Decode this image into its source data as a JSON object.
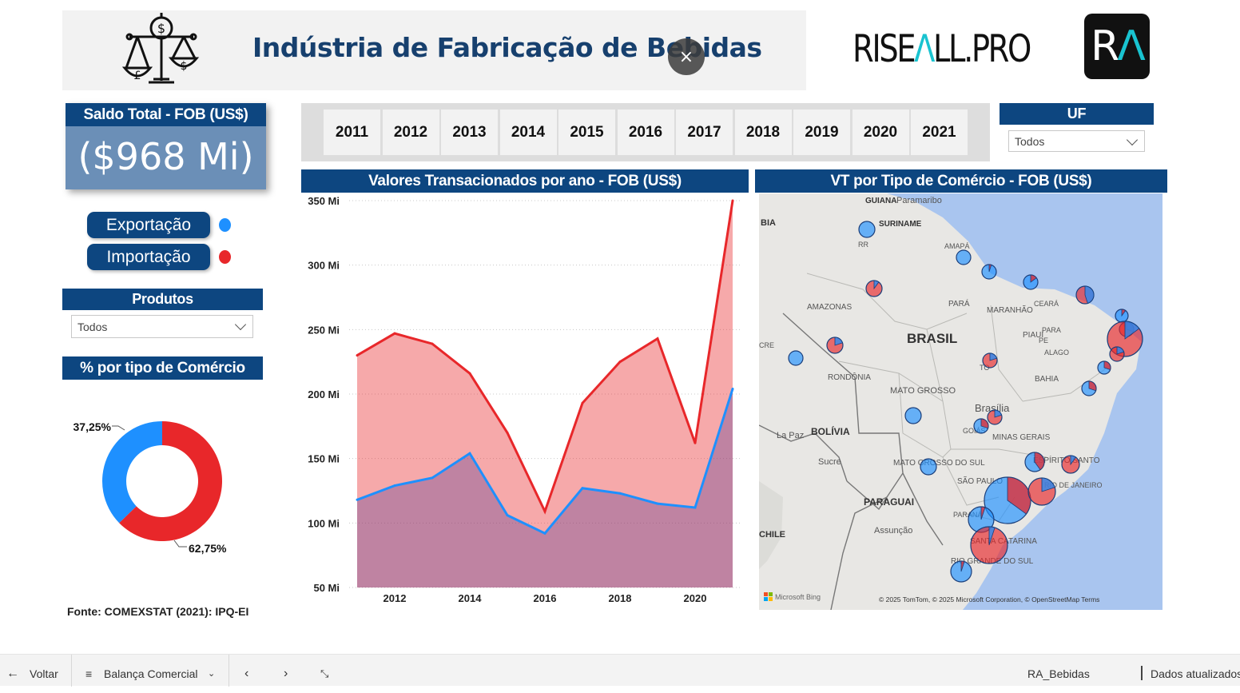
{
  "header": {
    "title": "Indústria de Fabricação de Bebidas"
  },
  "brand": {
    "name_a": "RISE",
    "name_b": "Λ",
    "name_c": "LL.PRO",
    "logo_a": "R",
    "logo_b": "Λ"
  },
  "close_button": {
    "icon": "close-icon",
    "label": "×"
  },
  "kpi": {
    "label": "Saldo Total - FOB (US$)",
    "value": "($968 Mi)"
  },
  "legend": [
    {
      "label": "Exportação",
      "color": "#1e90ff"
    },
    {
      "label": "Importação",
      "color": "#e8272a"
    }
  ],
  "produtos": {
    "label": "Produtos",
    "value": "Todos"
  },
  "uf": {
    "label": "UF",
    "value": "Todos"
  },
  "donut_title": "% por tipo de Comércio",
  "years": [
    "2011",
    "2012",
    "2013",
    "2014",
    "2015",
    "2016",
    "2017",
    "2018",
    "2019",
    "2020",
    "2021"
  ],
  "area_chart_title": "Valores Transacionados por ano - FOB (US$)",
  "map": {
    "title": "VT por Tipo de Comércio - FOB (US$)",
    "labels": [
      "GUIANA",
      "Paramaribo",
      "SURINAME",
      "BIA",
      "RR",
      "AMAPÁ",
      "AMAZONAS",
      "PARÁ",
      "MARANHÃO",
      "CEARÁ",
      "BRASIL",
      "PIAUÍ",
      "CRE",
      "PE",
      "PARA",
      "ALAGO",
      "RONDÔNIA",
      "TO",
      "BAHIA",
      "MATO GROSSO",
      "Brasília",
      "BOLÍVIA",
      "La Paz",
      "GOIÁS",
      "MINAS GERAIS",
      "Sucre",
      "MATO GROSSO DO SUL",
      "ESPÍRITO SANTO",
      "SÃO PAULO",
      "RIO DE JANEIRO",
      "PARAGUAI",
      "PARANÁ",
      "Assunção",
      "CHILE",
      "SANTA CATARINA",
      "RIO GRANDE DO SUL"
    ],
    "attribution": "© 2025 TomTom, © 2025 Microsoft Corporation, © OpenStreetMap  Terms",
    "bing": "Microsoft Bing"
  },
  "source": "Fonte: COMEXSTAT (2021): IPQ-EI",
  "bottombar": {
    "back": "Voltar",
    "page": "Balança Comercial",
    "report": "RA_Bebidas",
    "status": "Dados atualizados"
  },
  "chart_data": [
    {
      "type": "area",
      "title": "Valores Transacionados por ano - FOB (US$)",
      "x": [
        2011,
        2012,
        2013,
        2014,
        2015,
        2016,
        2017,
        2018,
        2019,
        2020,
        2021
      ],
      "xticks": [
        "2012",
        "2014",
        "2016",
        "2018",
        "2020"
      ],
      "yticks": [
        "50 Mi",
        "100 Mi",
        "150 Mi",
        "200 Mi",
        "250 Mi",
        "300 Mi",
        "350 Mi"
      ],
      "ylim": [
        50,
        350
      ],
      "series": [
        {
          "name": "Importação",
          "color": "#e8272a",
          "values": [
            230,
            247,
            239,
            216,
            170,
            109,
            193,
            225,
            243,
            162,
            350
          ]
        },
        {
          "name": "Exportação",
          "color": "#1e90ff",
          "values": [
            118,
            129,
            135,
            154,
            106,
            92,
            127,
            123,
            115,
            112,
            204
          ]
        }
      ],
      "grid": true
    },
    {
      "type": "pie",
      "variant": "donut",
      "title": "% por tipo de Comércio",
      "slices": [
        {
          "name": "Exportação",
          "value": 37.25,
          "label": "37,25%",
          "color": "#1e90ff"
        },
        {
          "name": "Importação",
          "value": 62.75,
          "label": "62,75%",
          "color": "#e8272a"
        }
      ]
    }
  ]
}
